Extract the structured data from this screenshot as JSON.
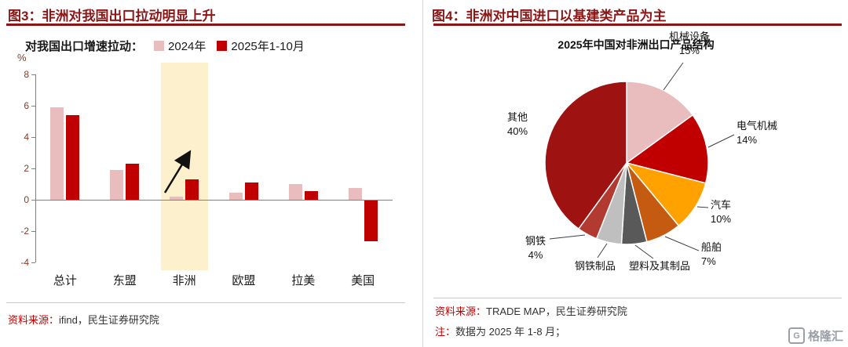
{
  "left_panel": {
    "title": "图3：非洲对我国出口拉动明显上升",
    "source_label": "资料来源：",
    "source_text": "ifind，民生证券研究院"
  },
  "right_panel": {
    "title": "图4：非洲对中国进口以基建类产品为主",
    "source_label": "资料来源：",
    "source_text": "TRADE MAP，民生证券研究院",
    "note_label": "注：",
    "note_text": "数据为 2025 年 1-8 月；"
  },
  "logo_text": "格隆汇",
  "colors": {
    "title_red": "#8c1515",
    "highlight_band": "#fdf0cd",
    "axis_text": "#8b3a26"
  },
  "chart_data": [
    {
      "type": "bar",
      "title": "对我国出口增速拉动：",
      "ylabel": "%",
      "ylim": [
        -4,
        8
      ],
      "yticks": [
        8,
        6,
        4,
        2,
        0,
        -2,
        -4
      ],
      "categories": [
        "总计",
        "东盟",
        "非洲",
        "欧盟",
        "拉美",
        "美国"
      ],
      "series": [
        {
          "name": "2024年",
          "color": "#e9bcbe",
          "values": [
            5.9,
            1.9,
            0.2,
            0.45,
            1.0,
            0.75
          ]
        },
        {
          "name": "2025年1-10月",
          "color": "#c00000",
          "values": [
            5.4,
            2.3,
            1.3,
            1.1,
            0.55,
            -2.6
          ]
        }
      ],
      "highlight_category": "非洲",
      "annotation": "up-right-arrow",
      "legend_position": "top",
      "grid": false
    },
    {
      "type": "pie",
      "title": "2025年中国对非洲出口产品结构",
      "slices": [
        {
          "label": "机械设备",
          "pct": "15%",
          "value": 15,
          "color": "#e9bcbe"
        },
        {
          "label": "电气机械",
          "pct": "14%",
          "value": 14,
          "color": "#c00000"
        },
        {
          "label": "汽车",
          "pct": "10%",
          "value": 10,
          "color": "#ffa200"
        },
        {
          "label": "船舶",
          "pct": "7%",
          "value": 7,
          "color": "#c55a11"
        },
        {
          "label": "塑料及其制品",
          "pct": "",
          "value": 5,
          "color": "#595959"
        },
        {
          "label": "钢铁制品",
          "pct": "",
          "value": 5,
          "color": "#bfbfbf"
        },
        {
          "label": "钢铁",
          "pct": "4%",
          "value": 4,
          "color": "#b23a30"
        },
        {
          "label": "其他",
          "pct": "40%",
          "value": 40,
          "color": "#9e1212"
        }
      ]
    }
  ]
}
